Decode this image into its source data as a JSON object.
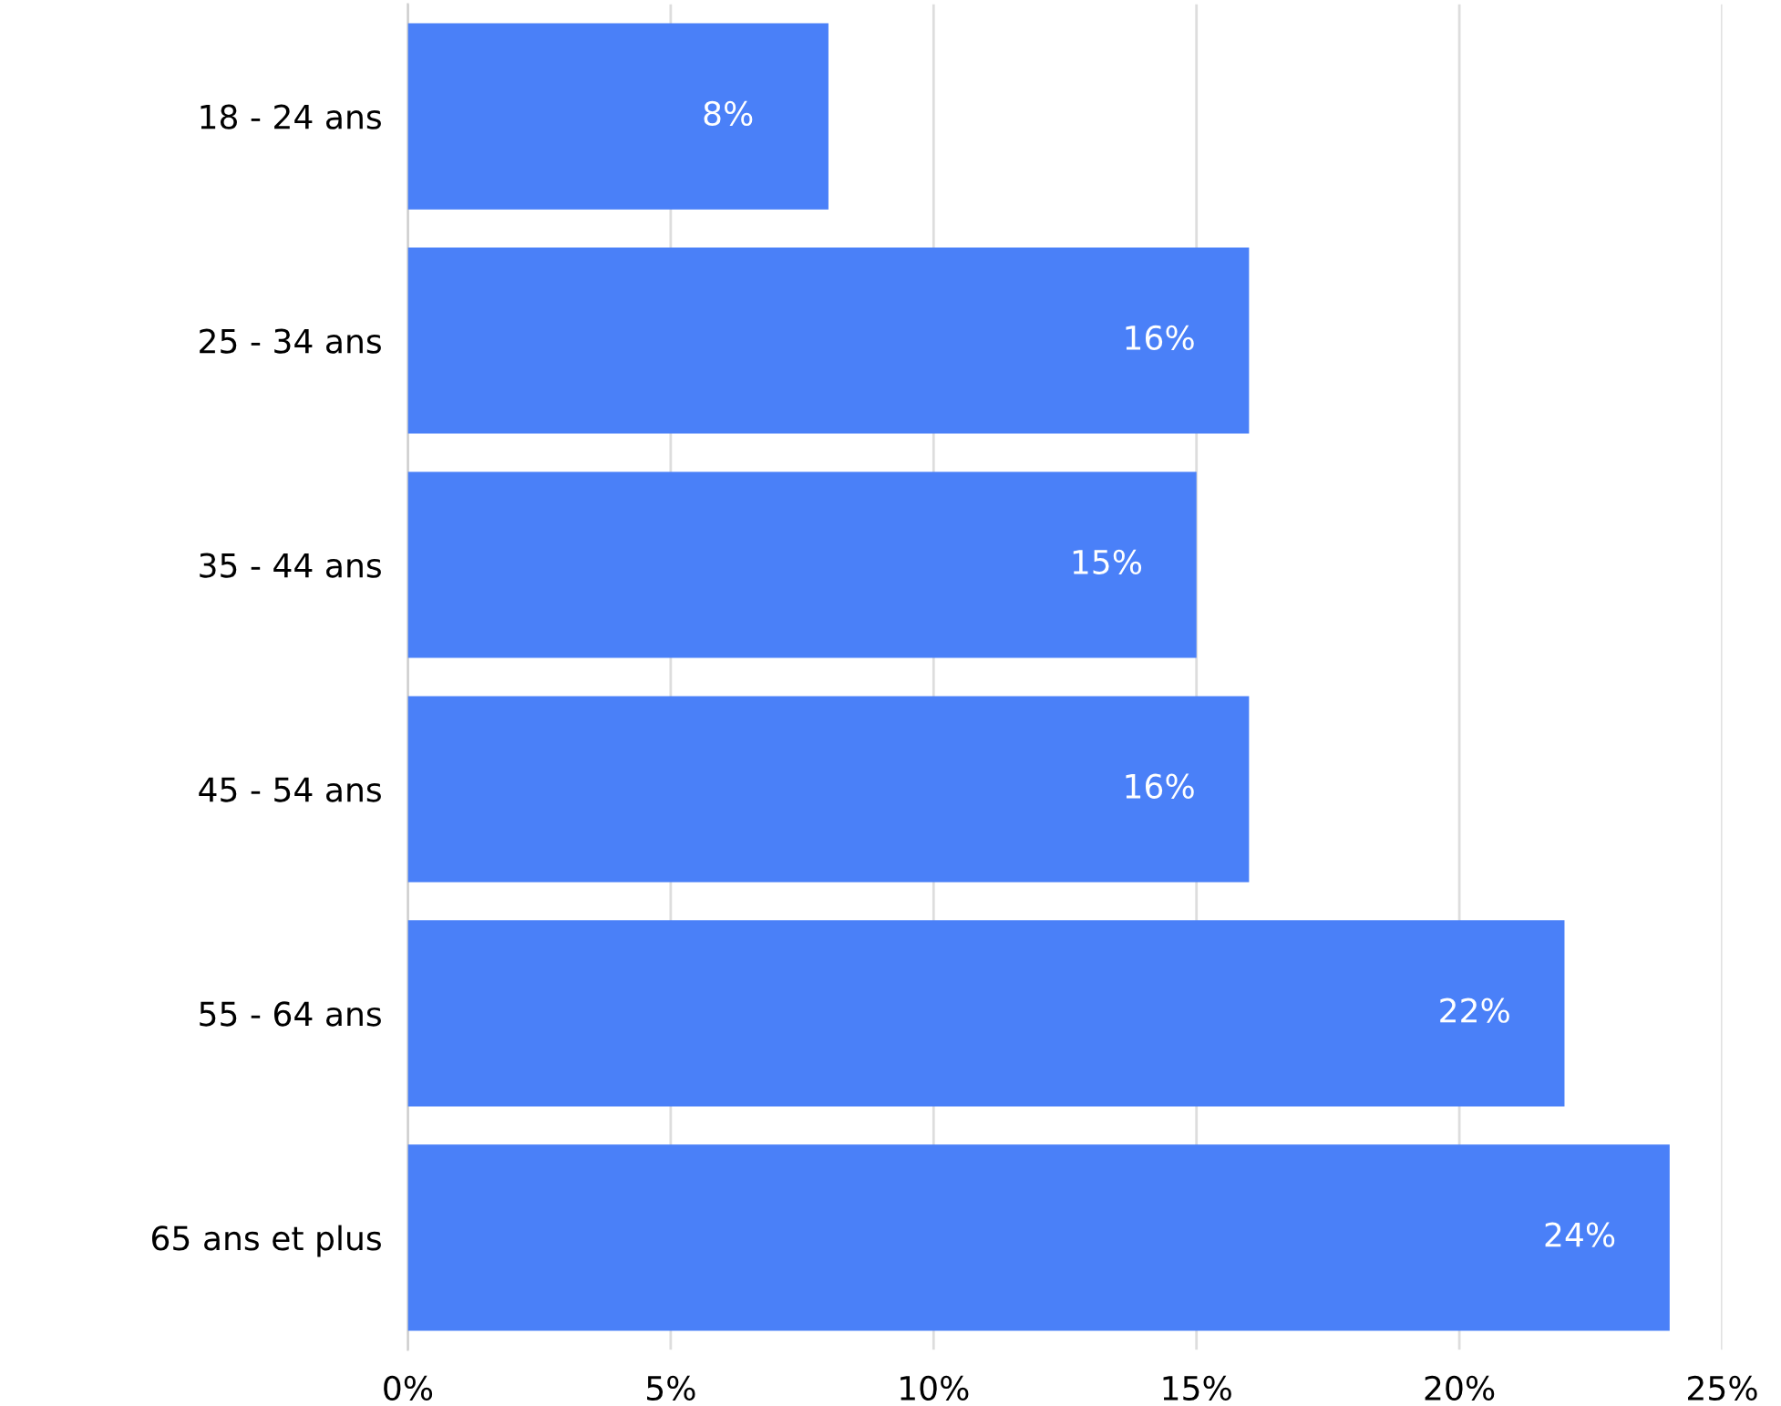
{
  "chart_data": {
    "type": "bar",
    "orientation": "horizontal",
    "categories": [
      "18 - 24 ans",
      "25 - 34 ans",
      "35 - 44 ans",
      "45 - 54 ans",
      "55 - 64 ans",
      "65 ans et plus"
    ],
    "values": [
      8,
      16,
      15,
      16,
      22,
      24
    ],
    "value_labels": [
      "8%",
      "16%",
      "15%",
      "16%",
      "22%",
      "24%"
    ],
    "color": "#4a80f8",
    "xlim": [
      0,
      25
    ],
    "xticks": [
      {
        "value": 0,
        "label": "0%"
      },
      {
        "value": 5,
        "label": "5%"
      },
      {
        "value": 10,
        "label": "10%"
      },
      {
        "value": 15,
        "label": "15%"
      },
      {
        "value": 20,
        "label": "20%"
      },
      {
        "value": 25,
        "label": "25%"
      }
    ],
    "grid": "x",
    "legend": false
  }
}
